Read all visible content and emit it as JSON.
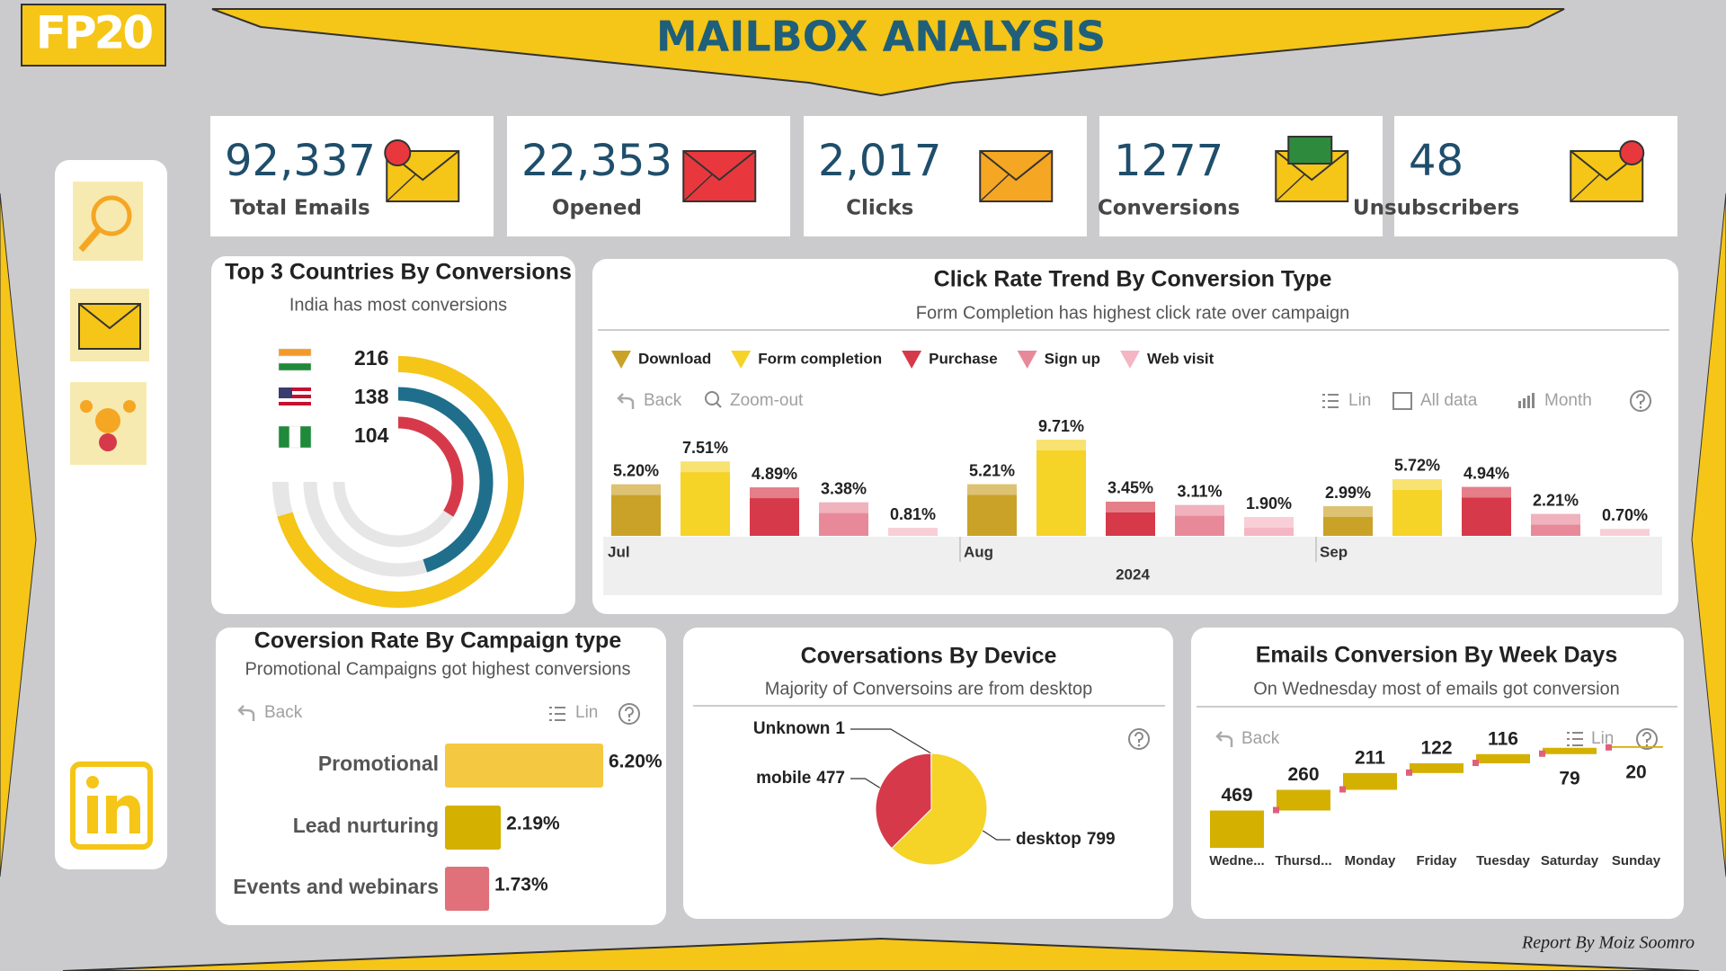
{
  "header": {
    "logo": "FP20",
    "title": "MAILBOX ANALYSIS"
  },
  "kpis": [
    {
      "value": "92,337",
      "label": "Total Emails"
    },
    {
      "value": "22,353",
      "label": "Opened"
    },
    {
      "value": "2,017",
      "label": "Clicks"
    },
    {
      "value": "1277",
      "label": "Conversions"
    },
    {
      "value": "48",
      "label": "Unsubscribers"
    }
  ],
  "chart_data": [
    {
      "type": "radial_bar",
      "title": "Top 3 Countries By Conversions",
      "subtitle": "India has most conversions",
      "categories": [
        null,
        null,
        null
      ],
      "values": [
        216,
        138,
        104
      ],
      "colors": [
        "#f5c518",
        "#1f6e8c",
        "#d63a4a"
      ]
    },
    {
      "type": "grouped_bar",
      "title": "Click Rate Trend By Conversion Type",
      "subtitle": "Form Completion has highest click rate over campaign",
      "toolbar": [
        "Back",
        "Zoom-out",
        "Lin",
        "All data",
        "Month"
      ],
      "categories": [
        "Jul",
        "Aug",
        "Sep"
      ],
      "xlabel": "2024",
      "series": [
        {
          "name": "Download",
          "color": "#c9a227",
          "values": [
            5.2,
            5.21,
            2.99
          ],
          "value_labels": [
            "5.20%",
            "5.21%",
            "2.99%"
          ]
        },
        {
          "name": "Form completion",
          "color": "#f5d327",
          "values": [
            7.51,
            9.71,
            5.72
          ],
          "value_labels": [
            "7.51%",
            "9.71%",
            "5.72%"
          ]
        },
        {
          "name": "Purchase",
          "color": "#d63a4a",
          "values": [
            4.89,
            3.45,
            4.94
          ],
          "value_labels": [
            "4.89%",
            "3.45%",
            "4.94%"
          ]
        },
        {
          "name": "Sign up",
          "color": "#e8899a",
          "values": [
            3.38,
            3.11,
            2.21
          ],
          "value_labels": [
            "3.38%",
            "3.11%",
            "2.21%"
          ]
        },
        {
          "name": "Web visit",
          "color": "#f4b6c2",
          "values": [
            0.81,
            1.9,
            0.7
          ],
          "value_labels": [
            "0.81%",
            "1.90%",
            "0.70%"
          ]
        }
      ]
    },
    {
      "type": "hbar",
      "title": "Coversion Rate By Campaign type",
      "subtitle": "Promotional Campaigns got highest conversions",
      "toolbar": [
        "Back",
        "Lin"
      ],
      "categories": [
        "Promotional",
        "Lead nurturing",
        "Events and webinars"
      ],
      "values": [
        6.2,
        2.19,
        1.73
      ],
      "value_labels": [
        "6.20%",
        "2.19%",
        "1.73%"
      ],
      "colors": [
        "#f5c842",
        "#d4b000",
        "#e0707a"
      ]
    },
    {
      "type": "pie",
      "title": "Coversations By Device",
      "subtitle": "Majority of Conversoins are from desktop",
      "categories": [
        "Unknown",
        "mobile",
        "desktop"
      ],
      "values": [
        1,
        477,
        799
      ],
      "colors": [
        "#444444",
        "#d63a4a",
        "#f5d327"
      ]
    },
    {
      "type": "waterfall",
      "title": "Emails Conversion By Week Days",
      "subtitle": "On Wednesday most of emails got conversion",
      "toolbar": [
        "Back",
        "Lin"
      ],
      "categories": [
        "Wedne...",
        "Thursd...",
        "Monday",
        "Friday",
        "Tuesday",
        "Saturday",
        "Sunday"
      ],
      "values": [
        469,
        260,
        211,
        122,
        116,
        79,
        20
      ],
      "color": "#d4b000"
    }
  ],
  "footer": "Report By Moiz Soomro"
}
